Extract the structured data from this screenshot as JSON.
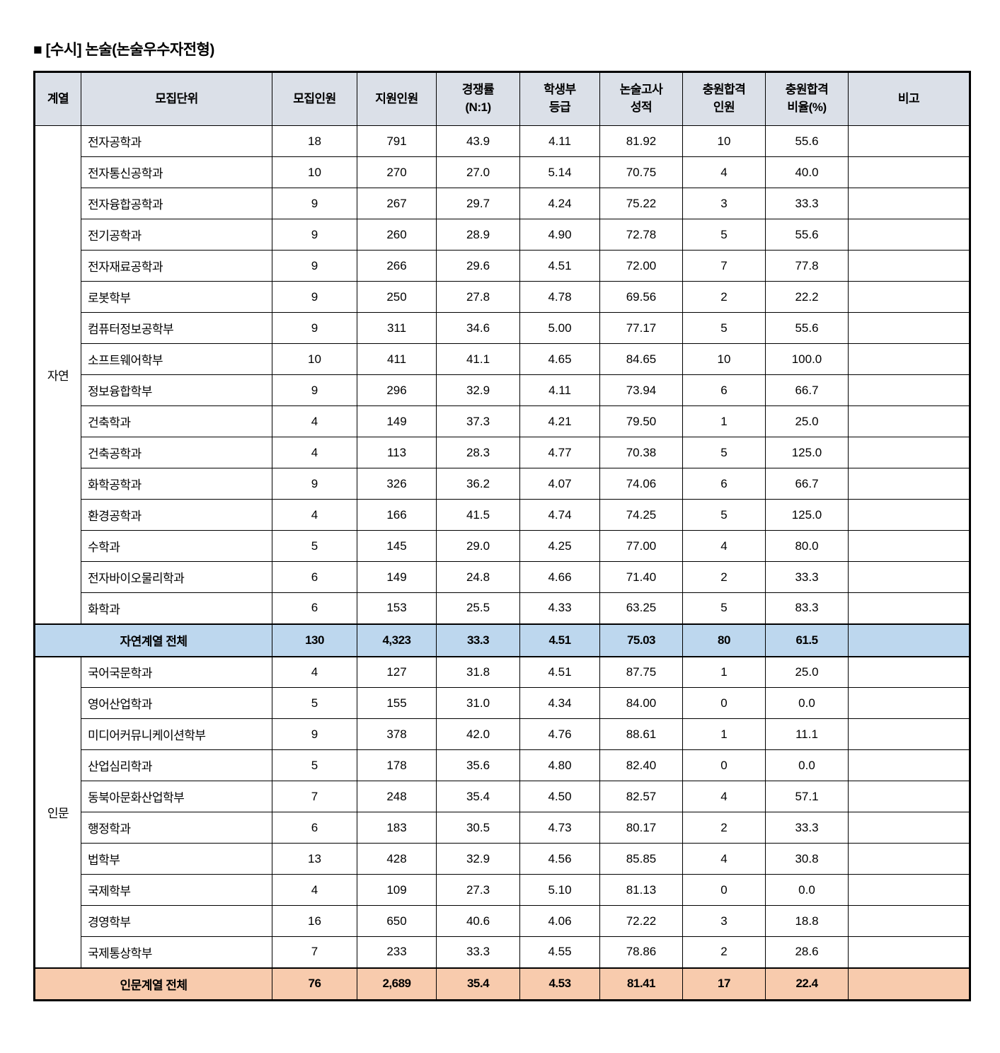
{
  "page": {
    "title": "■ [수시] 논술(논술우수자전형)"
  },
  "table": {
    "columns": [
      {
        "label": "계열"
      },
      {
        "label": "모집단위"
      },
      {
        "label": "모집인원"
      },
      {
        "label": "지원인원"
      },
      {
        "label": "경쟁률\n(N:1)"
      },
      {
        "label": "학생부\n등급"
      },
      {
        "label": "논술고사\n성적"
      },
      {
        "label": "충원합격\n인원"
      },
      {
        "label": "충원합격\n비율(%)"
      },
      {
        "label": "비고"
      }
    ],
    "colors": {
      "header_bg": "#dbe0e8",
      "natural_summary_bg": "#bdd7ee",
      "humanities_summary_bg": "#f8cbad",
      "border": "#000000"
    },
    "groups": [
      {
        "name": "자연",
        "rows": [
          {
            "dept": "전자공학과",
            "values": [
              "18",
              "791",
              "43.9",
              "4.11",
              "81.92",
              "10",
              "55.6",
              ""
            ]
          },
          {
            "dept": "전자통신공학과",
            "values": [
              "10",
              "270",
              "27.0",
              "5.14",
              "70.75",
              "4",
              "40.0",
              ""
            ]
          },
          {
            "dept": "전자융합공학과",
            "values": [
              "9",
              "267",
              "29.7",
              "4.24",
              "75.22",
              "3",
              "33.3",
              ""
            ]
          },
          {
            "dept": "전기공학과",
            "values": [
              "9",
              "260",
              "28.9",
              "4.90",
              "72.78",
              "5",
              "55.6",
              ""
            ]
          },
          {
            "dept": "전자재료공학과",
            "values": [
              "9",
              "266",
              "29.6",
              "4.51",
              "72.00",
              "7",
              "77.8",
              ""
            ]
          },
          {
            "dept": "로봇학부",
            "values": [
              "9",
              "250",
              "27.8",
              "4.78",
              "69.56",
              "2",
              "22.2",
              ""
            ]
          },
          {
            "dept": "컴퓨터정보공학부",
            "values": [
              "9",
              "311",
              "34.6",
              "5.00",
              "77.17",
              "5",
              "55.6",
              ""
            ]
          },
          {
            "dept": "소프트웨어학부",
            "values": [
              "10",
              "411",
              "41.1",
              "4.65",
              "84.65",
              "10",
              "100.0",
              ""
            ]
          },
          {
            "dept": "정보융합학부",
            "values": [
              "9",
              "296",
              "32.9",
              "4.11",
              "73.94",
              "6",
              "66.7",
              ""
            ]
          },
          {
            "dept": "건축학과",
            "values": [
              "4",
              "149",
              "37.3",
              "4.21",
              "79.50",
              "1",
              "25.0",
              ""
            ]
          },
          {
            "dept": "건축공학과",
            "values": [
              "4",
              "113",
              "28.3",
              "4.77",
              "70.38",
              "5",
              "125.0",
              ""
            ]
          },
          {
            "dept": "화학공학과",
            "values": [
              "9",
              "326",
              "36.2",
              "4.07",
              "74.06",
              "6",
              "66.7",
              ""
            ]
          },
          {
            "dept": "환경공학과",
            "values": [
              "4",
              "166",
              "41.5",
              "4.74",
              "74.25",
              "5",
              "125.0",
              ""
            ]
          },
          {
            "dept": "수학과",
            "values": [
              "5",
              "145",
              "29.0",
              "4.25",
              "77.00",
              "4",
              "80.0",
              ""
            ]
          },
          {
            "dept": "전자바이오물리학과",
            "values": [
              "6",
              "149",
              "24.8",
              "4.66",
              "71.40",
              "2",
              "33.3",
              ""
            ]
          },
          {
            "dept": "화학과",
            "values": [
              "6",
              "153",
              "25.5",
              "4.33",
              "63.25",
              "5",
              "83.3",
              ""
            ]
          }
        ],
        "summary": {
          "label": "자연계열 전체",
          "values": [
            "130",
            "4,323",
            "33.3",
            "4.51",
            "75.03",
            "80",
            "61.5",
            ""
          ]
        }
      },
      {
        "name": "인문",
        "rows": [
          {
            "dept": "국어국문학과",
            "values": [
              "4",
              "127",
              "31.8",
              "4.51",
              "87.75",
              "1",
              "25.0",
              ""
            ]
          },
          {
            "dept": "영어산업학과",
            "values": [
              "5",
              "155",
              "31.0",
              "4.34",
              "84.00",
              "0",
              "0.0",
              ""
            ]
          },
          {
            "dept": "미디어커뮤니케이션학부",
            "values": [
              "9",
              "378",
              "42.0",
              "4.76",
              "88.61",
              "1",
              "11.1",
              ""
            ]
          },
          {
            "dept": "산업심리학과",
            "values": [
              "5",
              "178",
              "35.6",
              "4.80",
              "82.40",
              "0",
              "0.0",
              ""
            ]
          },
          {
            "dept": "동북아문화산업학부",
            "values": [
              "7",
              "248",
              "35.4",
              "4.50",
              "82.57",
              "4",
              "57.1",
              ""
            ]
          },
          {
            "dept": "행정학과",
            "values": [
              "6",
              "183",
              "30.5",
              "4.73",
              "80.17",
              "2",
              "33.3",
              ""
            ]
          },
          {
            "dept": "법학부",
            "values": [
              "13",
              "428",
              "32.9",
              "4.56",
              "85.85",
              "4",
              "30.8",
              ""
            ]
          },
          {
            "dept": "국제학부",
            "values": [
              "4",
              "109",
              "27.3",
              "5.10",
              "81.13",
              "0",
              "0.0",
              ""
            ]
          },
          {
            "dept": "경영학부",
            "values": [
              "16",
              "650",
              "40.6",
              "4.06",
              "72.22",
              "3",
              "18.8",
              ""
            ]
          },
          {
            "dept": "국제통상학부",
            "values": [
              "7",
              "233",
              "33.3",
              "4.55",
              "78.86",
              "2",
              "28.6",
              ""
            ]
          }
        ],
        "summary": {
          "label": "인문계열 전체",
          "values": [
            "76",
            "2,689",
            "35.4",
            "4.53",
            "81.41",
            "17",
            "22.4",
            ""
          ]
        }
      }
    ]
  }
}
